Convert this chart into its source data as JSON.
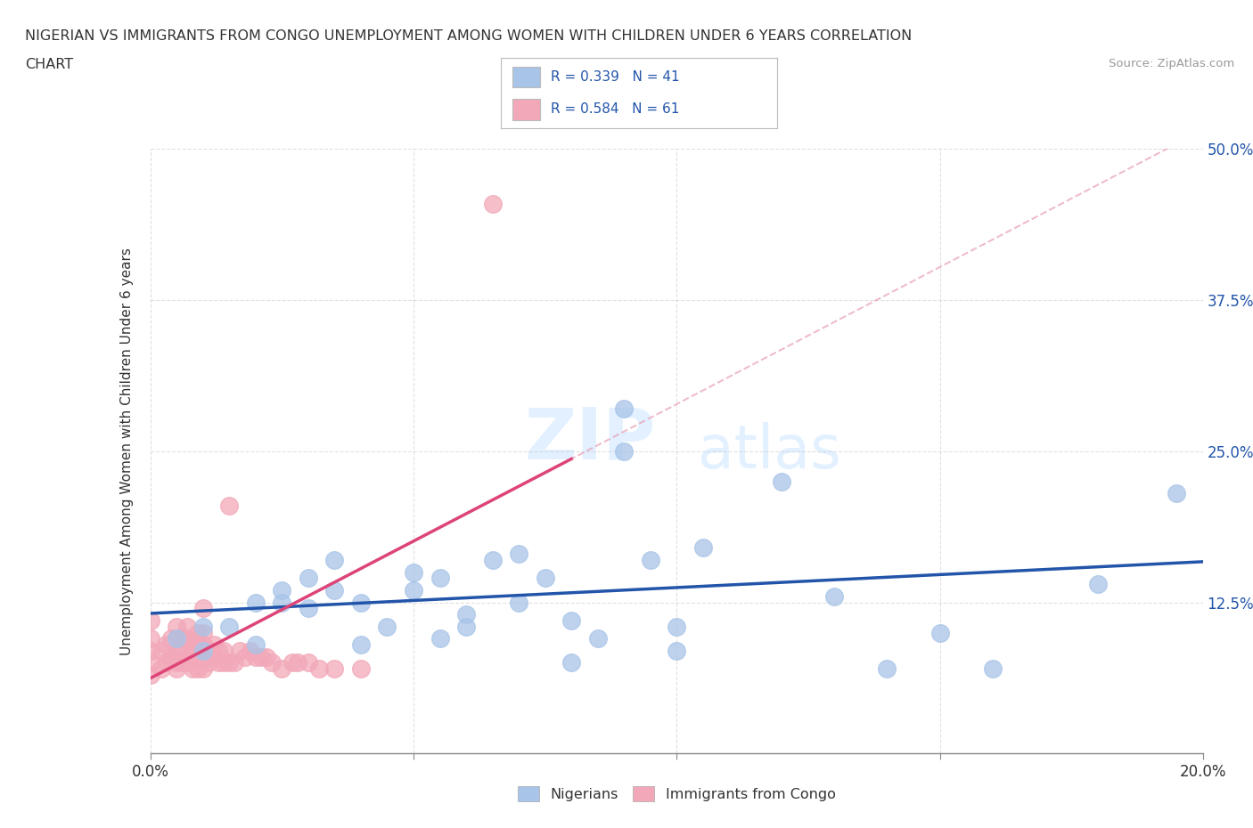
{
  "title_line1": "NIGERIAN VS IMMIGRANTS FROM CONGO UNEMPLOYMENT AMONG WOMEN WITH CHILDREN UNDER 6 YEARS CORRELATION",
  "title_line2": "CHART",
  "source": "Source: ZipAtlas.com",
  "ylabel": "Unemployment Among Women with Children Under 6 years",
  "xlim": [
    0.0,
    0.2
  ],
  "ylim": [
    0.0,
    0.5
  ],
  "xticks": [
    0.0,
    0.05,
    0.1,
    0.15,
    0.2
  ],
  "yticks": [
    0.0,
    0.125,
    0.25,
    0.375,
    0.5
  ],
  "xticklabels_sparse": {
    "0.0": "0.0%",
    "0.2": "20.0%"
  },
  "yticklabels": [
    "",
    "12.5%",
    "25.0%",
    "37.5%",
    "50.0%"
  ],
  "watermark_zip": "ZIP",
  "watermark_atlas": "atlas",
  "legend_text": [
    "R = 0.339   N = 41",
    "R = 0.584   N = 61"
  ],
  "legend_bottom_labels": [
    "Nigerians",
    "Immigrants from Congo"
  ],
  "blue_color": "#A8C4E8",
  "pink_color": "#F2A8B8",
  "blue_line_color": "#2255AA",
  "pink_line_color": "#DD4477",
  "pink_dashed_color": "#E8A0B8",
  "grid_color": "#CCCCCC",
  "tick_color": "#888888",
  "background_color": "#FFFFFF",
  "nigerian_x": [
    0.005,
    0.01,
    0.01,
    0.015,
    0.02,
    0.02,
    0.025,
    0.025,
    0.03,
    0.03,
    0.035,
    0.035,
    0.04,
    0.04,
    0.045,
    0.05,
    0.05,
    0.055,
    0.055,
    0.06,
    0.06,
    0.065,
    0.07,
    0.07,
    0.075,
    0.08,
    0.08,
    0.085,
    0.09,
    0.09,
    0.095,
    0.1,
    0.1,
    0.105,
    0.12,
    0.13,
    0.14,
    0.15,
    0.16,
    0.18,
    0.195
  ],
  "nigerian_y": [
    0.095,
    0.085,
    0.105,
    0.105,
    0.09,
    0.125,
    0.135,
    0.125,
    0.12,
    0.145,
    0.135,
    0.16,
    0.09,
    0.125,
    0.105,
    0.135,
    0.15,
    0.095,
    0.145,
    0.115,
    0.105,
    0.16,
    0.165,
    0.125,
    0.145,
    0.11,
    0.075,
    0.095,
    0.285,
    0.25,
    0.16,
    0.105,
    0.085,
    0.17,
    0.225,
    0.13,
    0.07,
    0.1,
    0.07,
    0.14,
    0.215
  ],
  "congo_x": [
    0.0,
    0.0,
    0.0,
    0.0,
    0.0,
    0.002,
    0.002,
    0.003,
    0.003,
    0.004,
    0.004,
    0.005,
    0.005,
    0.005,
    0.005,
    0.005,
    0.006,
    0.006,
    0.006,
    0.007,
    0.007,
    0.007,
    0.007,
    0.008,
    0.008,
    0.008,
    0.009,
    0.009,
    0.009,
    0.009,
    0.01,
    0.01,
    0.01,
    0.01,
    0.01,
    0.011,
    0.011,
    0.012,
    0.012,
    0.013,
    0.013,
    0.014,
    0.014,
    0.015,
    0.015,
    0.016,
    0.017,
    0.018,
    0.019,
    0.02,
    0.021,
    0.022,
    0.023,
    0.025,
    0.027,
    0.028,
    0.03,
    0.032,
    0.035,
    0.04,
    0.065
  ],
  "congo_y": [
    0.065,
    0.075,
    0.085,
    0.095,
    0.11,
    0.07,
    0.085,
    0.075,
    0.09,
    0.08,
    0.095,
    0.07,
    0.075,
    0.085,
    0.095,
    0.105,
    0.075,
    0.085,
    0.095,
    0.075,
    0.085,
    0.095,
    0.105,
    0.07,
    0.08,
    0.09,
    0.07,
    0.08,
    0.09,
    0.1,
    0.07,
    0.08,
    0.09,
    0.1,
    0.12,
    0.075,
    0.085,
    0.08,
    0.09,
    0.075,
    0.085,
    0.075,
    0.085,
    0.075,
    0.205,
    0.075,
    0.085,
    0.08,
    0.085,
    0.08,
    0.08,
    0.08,
    0.075,
    0.07,
    0.075,
    0.075,
    0.075,
    0.07,
    0.07,
    0.07,
    0.455
  ]
}
